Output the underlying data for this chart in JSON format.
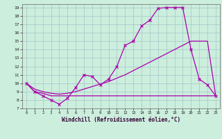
{
  "xlabel": "Windchill (Refroidissement éolien,°C)",
  "bg_color": "#cceedd",
  "grid_color": "#aacccc",
  "line_color": "#aa00aa",
  "xlim": [
    -0.5,
    23.5
  ],
  "ylim": [
    7,
    19.4
  ],
  "xticks": [
    0,
    1,
    2,
    3,
    4,
    5,
    6,
    7,
    8,
    9,
    10,
    11,
    12,
    13,
    14,
    15,
    16,
    17,
    18,
    19,
    20,
    21,
    22,
    23
  ],
  "yticks": [
    7,
    8,
    9,
    10,
    11,
    12,
    13,
    14,
    15,
    16,
    17,
    18,
    19
  ],
  "hours": [
    0,
    1,
    2,
    3,
    4,
    5,
    6,
    7,
    8,
    9,
    10,
    11,
    12,
    13,
    14,
    15,
    16,
    17,
    18,
    19,
    20,
    21,
    22,
    23
  ],
  "temp_main": [
    10.0,
    9.0,
    8.5,
    8.0,
    7.5,
    8.2,
    9.5,
    11.0,
    10.8,
    9.8,
    10.5,
    12.0,
    14.5,
    15.0,
    16.8,
    17.5,
    18.9,
    19.0,
    19.0,
    19.0,
    14.0,
    10.5,
    9.8,
    8.5
  ],
  "temp_flat": [
    10.0,
    9.0,
    8.8,
    8.5,
    8.5,
    8.5,
    8.5,
    8.5,
    8.5,
    8.5,
    8.5,
    8.5,
    8.5,
    8.5,
    8.5,
    8.5,
    8.5,
    8.5,
    8.5,
    8.5,
    8.5,
    8.5,
    8.5,
    8.5
  ],
  "temp_diag": [
    10.0,
    9.3,
    9.0,
    8.8,
    8.7,
    8.8,
    9.0,
    9.3,
    9.6,
    9.9,
    10.2,
    10.6,
    11.0,
    11.5,
    12.0,
    12.5,
    13.0,
    13.5,
    14.0,
    14.5,
    15.0,
    15.0,
    15.0,
    8.5
  ]
}
